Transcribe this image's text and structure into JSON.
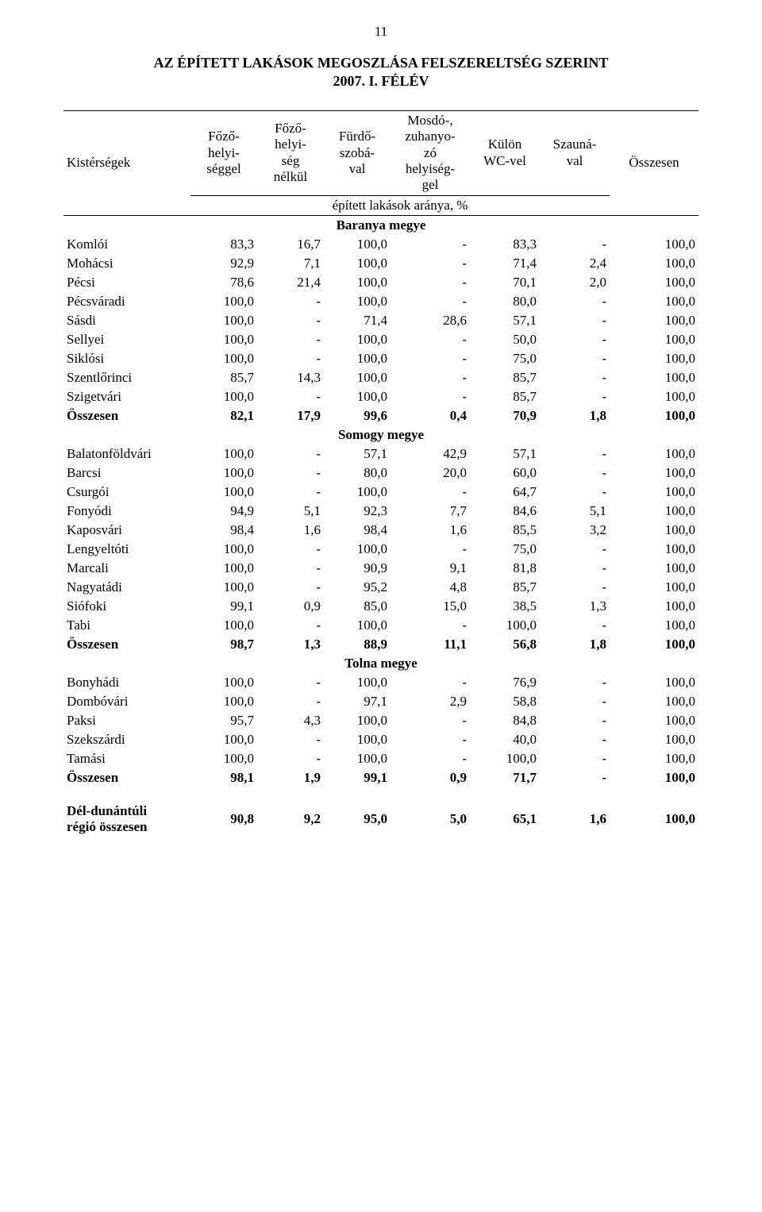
{
  "page_number": "11",
  "title_lines": [
    "AZ ÉPÍTETT LAKÁSOK MEGOSZLÁSA FELSZERELTSÉG SZERINT",
    "2007. I. FÉLÉV"
  ],
  "header": {
    "stub": "Kistérségek",
    "cols": [
      [
        "Főző-",
        "helyi-",
        "séggel"
      ],
      [
        "Főző-",
        "helyi-",
        "ség",
        "nélkül"
      ],
      [
        "Fürdő-",
        "szobá-",
        "val"
      ],
      [
        "Mosdó-,",
        "zuhanyo-",
        "zó",
        "helyiség-",
        "gel"
      ],
      [
        "Külön",
        "WC-vel"
      ],
      [
        "Szauná-",
        "val"
      ]
    ],
    "subhead": "épített lakások aránya, %",
    "total": "Összesen"
  },
  "sections": [
    {
      "title": "Baranya megye",
      "rows": [
        {
          "label": "Komlói",
          "cells": [
            "83,3",
            "16,7",
            "100,0",
            "-",
            "83,3",
            "-",
            "100,0"
          ]
        },
        {
          "label": "Mohácsi",
          "cells": [
            "92,9",
            "7,1",
            "100,0",
            "-",
            "71,4",
            "2,4",
            "100,0"
          ]
        },
        {
          "label": "Pécsi",
          "cells": [
            "78,6",
            "21,4",
            "100,0",
            "-",
            "70,1",
            "2,0",
            "100,0"
          ]
        },
        {
          "label": "Pécsváradi",
          "cells": [
            "100,0",
            "-",
            "100,0",
            "-",
            "80,0",
            "-",
            "100,0"
          ]
        },
        {
          "label": "Sásdi",
          "cells": [
            "100,0",
            "-",
            "71,4",
            "28,6",
            "57,1",
            "-",
            "100,0"
          ]
        },
        {
          "label": "Sellyei",
          "cells": [
            "100,0",
            "-",
            "100,0",
            "-",
            "50,0",
            "-",
            "100,0"
          ]
        },
        {
          "label": "Siklósi",
          "cells": [
            "100,0",
            "-",
            "100,0",
            "-",
            "75,0",
            "-",
            "100,0"
          ]
        },
        {
          "label": "Szentlőrinci",
          "cells": [
            "85,7",
            "14,3",
            "100,0",
            "-",
            "85,7",
            "-",
            "100,0"
          ]
        },
        {
          "label": "Szigetvári",
          "cells": [
            "100,0",
            "-",
            "100,0",
            "-",
            "85,7",
            "-",
            "100,0"
          ]
        },
        {
          "label": "Összesen",
          "bold": true,
          "cells": [
            "82,1",
            "17,9",
            "99,6",
            "0,4",
            "70,9",
            "1,8",
            "100,0"
          ]
        }
      ]
    },
    {
      "title": "Somogy megye",
      "rows": [
        {
          "label": "Balatonföldvári",
          "cells": [
            "100,0",
            "-",
            "57,1",
            "42,9",
            "57,1",
            "-",
            "100,0"
          ]
        },
        {
          "label": "Barcsi",
          "cells": [
            "100,0",
            "-",
            "80,0",
            "20,0",
            "60,0",
            "-",
            "100,0"
          ]
        },
        {
          "label": "Csurgói",
          "cells": [
            "100,0",
            "-",
            "100,0",
            "-",
            "64,7",
            "-",
            "100,0"
          ]
        },
        {
          "label": "Fonyódi",
          "cells": [
            "94,9",
            "5,1",
            "92,3",
            "7,7",
            "84,6",
            "5,1",
            "100,0"
          ]
        },
        {
          "label": "Kaposvári",
          "cells": [
            "98,4",
            "1,6",
            "98,4",
            "1,6",
            "85,5",
            "3,2",
            "100,0"
          ]
        },
        {
          "label": "Lengyeltóti",
          "cells": [
            "100,0",
            "-",
            "100,0",
            "-",
            "75,0",
            "-",
            "100,0"
          ]
        },
        {
          "label": "Marcali",
          "cells": [
            "100,0",
            "-",
            "90,9",
            "9,1",
            "81,8",
            "-",
            "100,0"
          ]
        },
        {
          "label": "Nagyatádi",
          "cells": [
            "100,0",
            "-",
            "95,2",
            "4,8",
            "85,7",
            "-",
            "100,0"
          ]
        },
        {
          "label": "Siófoki",
          "cells": [
            "99,1",
            "0,9",
            "85,0",
            "15,0",
            "38,5",
            "1,3",
            "100,0"
          ]
        },
        {
          "label": "Tabi",
          "cells": [
            "100,0",
            "-",
            "100,0",
            "-",
            "100,0",
            "-",
            "100,0"
          ]
        },
        {
          "label": "Összesen",
          "bold": true,
          "cells": [
            "98,7",
            "1,3",
            "88,9",
            "11,1",
            "56,8",
            "1,8",
            "100,0"
          ]
        }
      ]
    },
    {
      "title": "Tolna megye",
      "rows": [
        {
          "label": "Bonyhádi",
          "cells": [
            "100,0",
            "-",
            "100,0",
            "-",
            "76,9",
            "-",
            "100,0"
          ]
        },
        {
          "label": "Dombóvári",
          "cells": [
            "100,0",
            "-",
            "97,1",
            "2,9",
            "58,8",
            "-",
            "100,0"
          ]
        },
        {
          "label": "Paksi",
          "cells": [
            "95,7",
            "4,3",
            "100,0",
            "-",
            "84,8",
            "-",
            "100,0"
          ]
        },
        {
          "label": "Szekszárdi",
          "cells": [
            "100,0",
            "-",
            "100,0",
            "-",
            "40,0",
            "-",
            "100,0"
          ]
        },
        {
          "label": "Tamási",
          "cells": [
            "100,0",
            "-",
            "100,0",
            "-",
            "100,0",
            "-",
            "100,0"
          ]
        },
        {
          "label": "Összesen",
          "bold": true,
          "cells": [
            "98,1",
            "1,9",
            "99,1",
            "0,9",
            "71,7",
            "-",
            "100,0"
          ]
        }
      ]
    }
  ],
  "grand_total": {
    "label_lines": [
      "Dél-dunántúli",
      "régió összesen"
    ],
    "cells": [
      "90,8",
      "9,2",
      "95,0",
      "5,0",
      "65,1",
      "1,6",
      "100,0"
    ]
  },
  "layout": {
    "col_widths_pct": [
      20,
      10.5,
      10.5,
      10.5,
      12.5,
      11,
      11,
      14
    ]
  }
}
